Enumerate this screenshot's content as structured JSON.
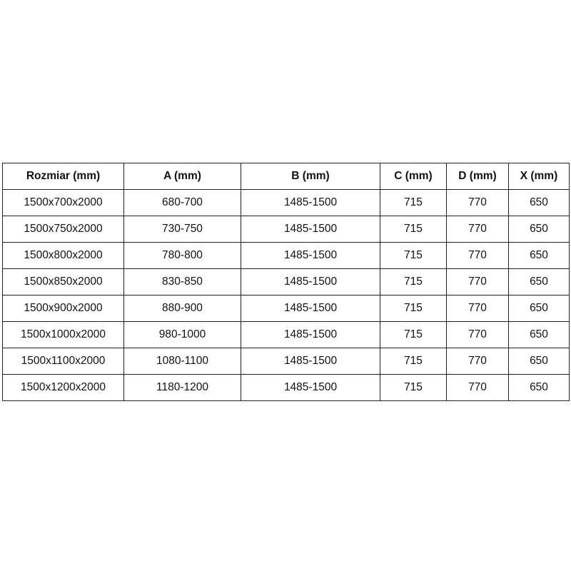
{
  "table": {
    "headers": [
      "Rozmiar (mm)",
      "A (mm)",
      "B (mm)",
      "C (mm)",
      "D (mm)",
      "X (mm)"
    ],
    "rows": [
      [
        "1500x700x2000",
        "680-700",
        "1485-1500",
        "715",
        "770",
        "650"
      ],
      [
        "1500x750x2000",
        "730-750",
        "1485-1500",
        "715",
        "770",
        "650"
      ],
      [
        "1500x800x2000",
        "780-800",
        "1485-1500",
        "715",
        "770",
        "650"
      ],
      [
        "1500x850x2000",
        "830-850",
        "1485-1500",
        "715",
        "770",
        "650"
      ],
      [
        "1500x900x2000",
        "880-900",
        "1485-1500",
        "715",
        "770",
        "650"
      ],
      [
        "1500x1000x2000",
        "980-1000",
        "1485-1500",
        "715",
        "770",
        "650"
      ],
      [
        "1500x1100x2000",
        "1080-1100",
        "1485-1500",
        "715",
        "770",
        "650"
      ],
      [
        "1500x1200x2000",
        "1180-1200",
        "1485-1500",
        "715",
        "770",
        "650"
      ]
    ]
  }
}
